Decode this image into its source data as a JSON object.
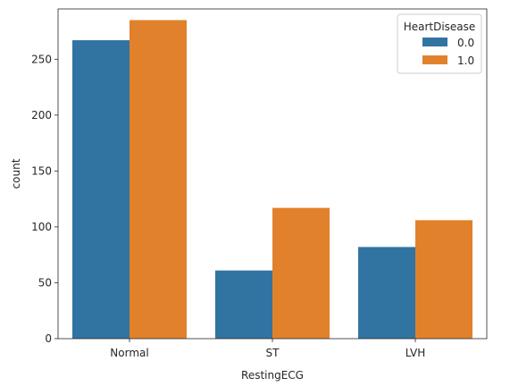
{
  "chart_data": {
    "type": "bar",
    "title": "",
    "xlabel": "RestingECG",
    "ylabel": "count",
    "categories": [
      "Normal",
      "ST",
      "LVH"
    ],
    "series": [
      {
        "name": "0.0",
        "values": [
          267,
          61,
          82
        ],
        "color": "#3274a1"
      },
      {
        "name": "1.0",
        "values": [
          285,
          117,
          106
        ],
        "color": "#e1812c"
      }
    ],
    "ylim": [
      0,
      295
    ],
    "yticks": [
      0,
      50,
      100,
      150,
      200,
      250
    ],
    "grid": false,
    "legend": {
      "title": "HeartDisease",
      "placement": "top-right"
    }
  }
}
